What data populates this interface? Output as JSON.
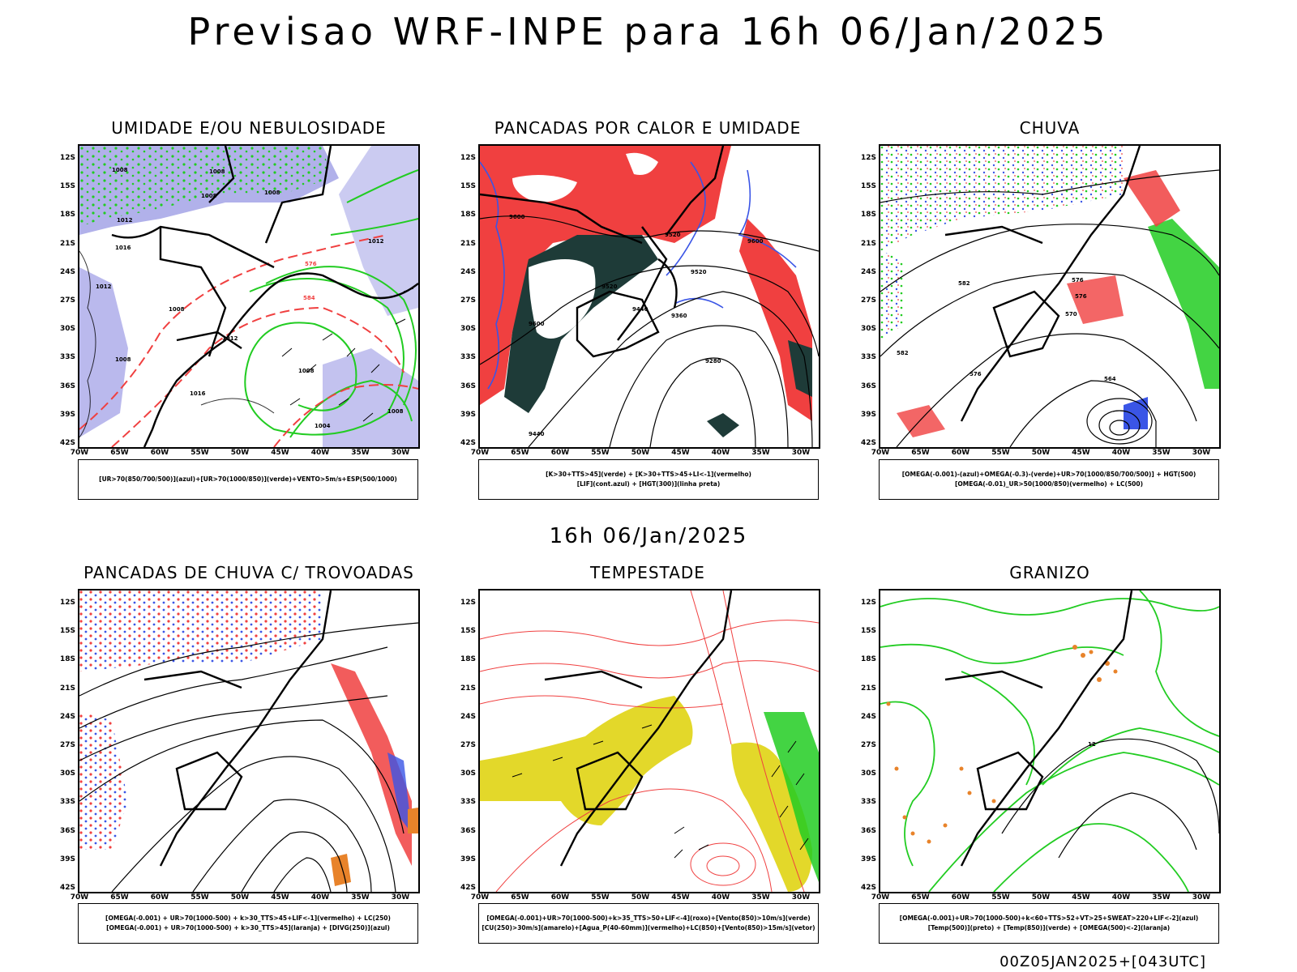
{
  "main_title": "Previsao WRF-INPE  para 16h 06/Jan/2025",
  "mid_title": "16h 06/Jan/2025",
  "footer": "00Z05JAN2025+[043UTC]",
  "lat_labels": [
    "12S",
    "15S",
    "18S",
    "21S",
    "24S",
    "27S",
    "30S",
    "33S",
    "36S",
    "39S",
    "42S"
  ],
  "lon_labels": [
    "70W",
    "65W",
    "60W",
    "55W",
    "50W",
    "45W",
    "40W",
    "35W",
    "30W"
  ],
  "panels": [
    {
      "title": "UMIDADE E/OU NEBULOSIDADE",
      "legend": [
        "[UR>70(850/700/500)](azul)+[UR>70(1000/850)](verde)+VENTO>5m/s+ESP(500/1000)"
      ]
    },
    {
      "title": "PANCADAS POR CALOR E UMIDADE",
      "legend": [
        "[K>30+TTS>45](verde) + [K>30+TTS>45+LI<-1](vermelho)",
        "[LIF](cont.azul) + [HGT(300)](linha preta)"
      ]
    },
    {
      "title": "CHUVA",
      "legend": [
        "[OMEGA(-0.001)-(azul)+OMEGA(-0.3)-(verde)+UR>70(1000/850/700/500)] + HGT(500)",
        "[OMEGA(-0.01)_UR>50(1000/850)(vermelho) + LC(500)"
      ]
    },
    {
      "title": "PANCADAS DE CHUVA C/ TROVOADAS",
      "legend": [
        "[OMEGA(-0.001) + UR>70(1000-500) + k>30_TTS>45+LIF<-1](vermelho) + LC(250)",
        "[OMEGA(-0.001) + UR>70(1000-500) + k>30_TTS>45](laranja) + [DIVG(250)](azul)"
      ]
    },
    {
      "title": "TEMPESTADE",
      "legend": [
        "[OMEGA(-0.001)+UR>70(1000-500)+k>35_TTS>50+LIF<-4](roxo)+[Vento(850)>10m/s](verde)",
        "[CU(250)>30m/s](amarelo)+[Agua_P(40-60mm)](vermelho)+LC(850)+[Vento(850)>15m/s](vetor)"
      ]
    },
    {
      "title": "GRANIZO",
      "legend": [
        "[OMEGA(-0.001)+UR>70(1000-500)+k<60+TTS>52+VT>25+SWEAT>220+LIF<-2](azul)",
        "[Temp(500)](preto) + [Temp(850)](verde) + [OMEGA(500)<-2](laranja)"
      ]
    }
  ],
  "contour_labels": {
    "p0": [
      "1008",
      "1008",
      "1008",
      "1008",
      "1012",
      "1016",
      "1012",
      "1008",
      "1012",
      "1008",
      "1008",
      "1016",
      "1004",
      "1008",
      "576",
      "584",
      "1012"
    ],
    "p1": [
      "9600",
      "9520",
      "9600",
      "9440",
      "9360",
      "9280",
      "9520",
      "9600",
      "9520",
      "9440"
    ],
    "p2": [
      "582",
      "576",
      "570",
      "564",
      "582",
      "576",
      "576"
    ],
    "p5": [
      "12"
    ]
  },
  "colors": {
    "blue": "#3a55e6",
    "green": "#22cc22",
    "red": "#f04040",
    "darkteal": "#1e3b38",
    "lavender": "#a9a8e8",
    "yellow": "#e3d82a",
    "orange": "#e8832a"
  }
}
